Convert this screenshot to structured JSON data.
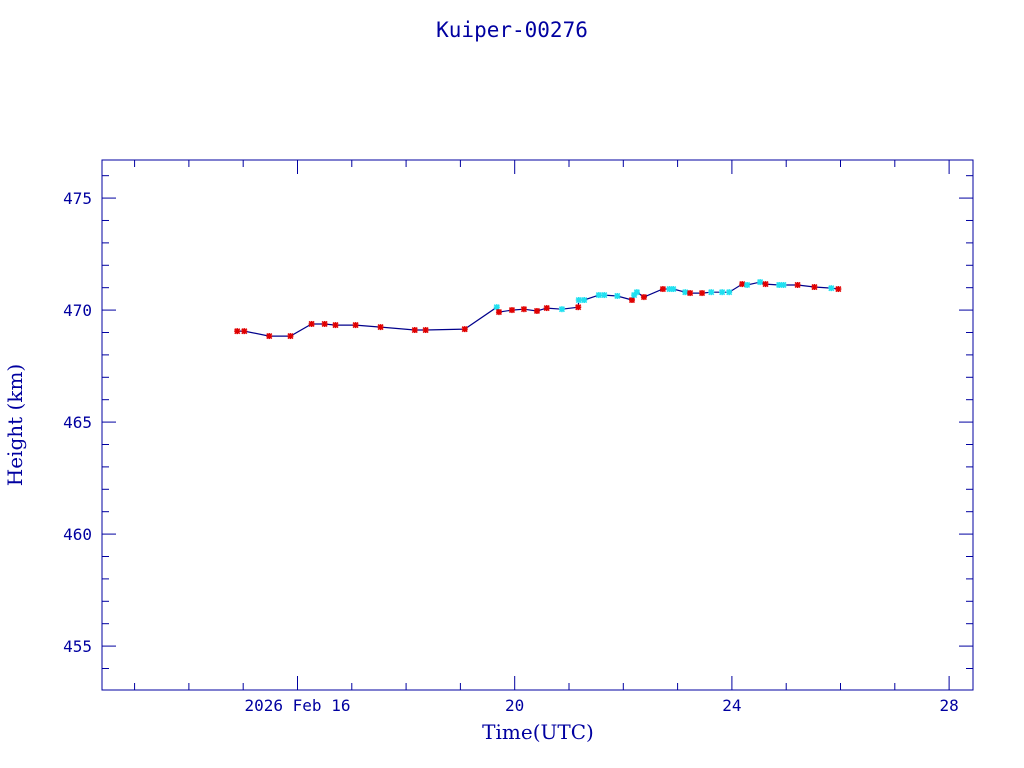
{
  "chart_data": {
    "type": "line",
    "title": "Kuiper-00276",
    "xlabel": "Time(UTC)",
    "ylabel": "Height (km)",
    "xlim": [
      12.4,
      28.44
    ],
    "ylim": [
      453.04,
      476.7
    ],
    "x_units": "day of Feb 2026",
    "xticks": [
      {
        "value": 16,
        "label": "2026 Feb 16"
      },
      {
        "value": 20,
        "label": "20"
      },
      {
        "value": 24,
        "label": "24"
      },
      {
        "value": 28,
        "label": "28"
      }
    ],
    "yticks": [
      {
        "value": 455,
        "label": "455"
      },
      {
        "value": 460,
        "label": "460"
      },
      {
        "value": 465,
        "label": "465"
      },
      {
        "value": 470,
        "label": "470"
      },
      {
        "value": 475,
        "label": "475"
      }
    ],
    "colors": {
      "axis": "#0000a0",
      "line": "#00008b",
      "marker_red": "#e00000",
      "marker_cyan": "#20e0f0"
    },
    "points": [
      [
        14.89,
        469.06,
        "r"
      ],
      [
        15.02,
        469.06,
        "r"
      ],
      [
        15.48,
        468.84,
        "r"
      ],
      [
        15.87,
        468.84,
        "r"
      ],
      [
        16.26,
        469.38,
        "r"
      ],
      [
        16.5,
        469.38,
        "r"
      ],
      [
        16.7,
        469.33,
        "r"
      ],
      [
        17.07,
        469.33,
        "r"
      ],
      [
        17.53,
        469.24,
        "r"
      ],
      [
        18.16,
        469.11,
        "r"
      ],
      [
        18.36,
        469.11,
        "r"
      ],
      [
        19.08,
        469.15,
        "r"
      ],
      [
        19.67,
        470.13,
        "c"
      ],
      [
        19.71,
        469.91,
        "r"
      ],
      [
        19.95,
        470.0,
        "r"
      ],
      [
        20.17,
        470.04,
        "r"
      ],
      [
        20.41,
        469.96,
        "r"
      ],
      [
        20.59,
        470.09,
        "r"
      ],
      [
        20.87,
        470.04,
        "c"
      ],
      [
        21.17,
        470.13,
        "r"
      ],
      [
        21.18,
        470.45,
        "c"
      ],
      [
        21.28,
        470.45,
        "c"
      ],
      [
        21.55,
        470.67,
        "c"
      ],
      [
        21.65,
        470.67,
        "c"
      ],
      [
        21.89,
        470.63,
        "c"
      ],
      [
        22.16,
        470.45,
        "r"
      ],
      [
        22.2,
        470.67,
        "c"
      ],
      [
        22.25,
        470.8,
        "c"
      ],
      [
        22.38,
        470.58,
        "r"
      ],
      [
        22.73,
        470.94,
        "r"
      ],
      [
        22.85,
        470.94,
        "c"
      ],
      [
        22.92,
        470.94,
        "c"
      ],
      [
        23.14,
        470.8,
        "c"
      ],
      [
        23.23,
        470.76,
        "r"
      ],
      [
        23.45,
        470.76,
        "r"
      ],
      [
        23.62,
        470.8,
        "c"
      ],
      [
        23.82,
        470.8,
        "c"
      ],
      [
        23.95,
        470.8,
        "c"
      ],
      [
        24.19,
        471.16,
        "r"
      ],
      [
        24.28,
        471.12,
        "c"
      ],
      [
        24.52,
        471.25,
        "c"
      ],
      [
        24.62,
        471.16,
        "r"
      ],
      [
        24.87,
        471.12,
        "c"
      ],
      [
        24.95,
        471.12,
        "c"
      ],
      [
        25.21,
        471.12,
        "r"
      ],
      [
        25.52,
        471.03,
        "r"
      ],
      [
        25.83,
        470.98,
        "c"
      ],
      [
        25.96,
        470.94,
        "r"
      ]
    ]
  }
}
